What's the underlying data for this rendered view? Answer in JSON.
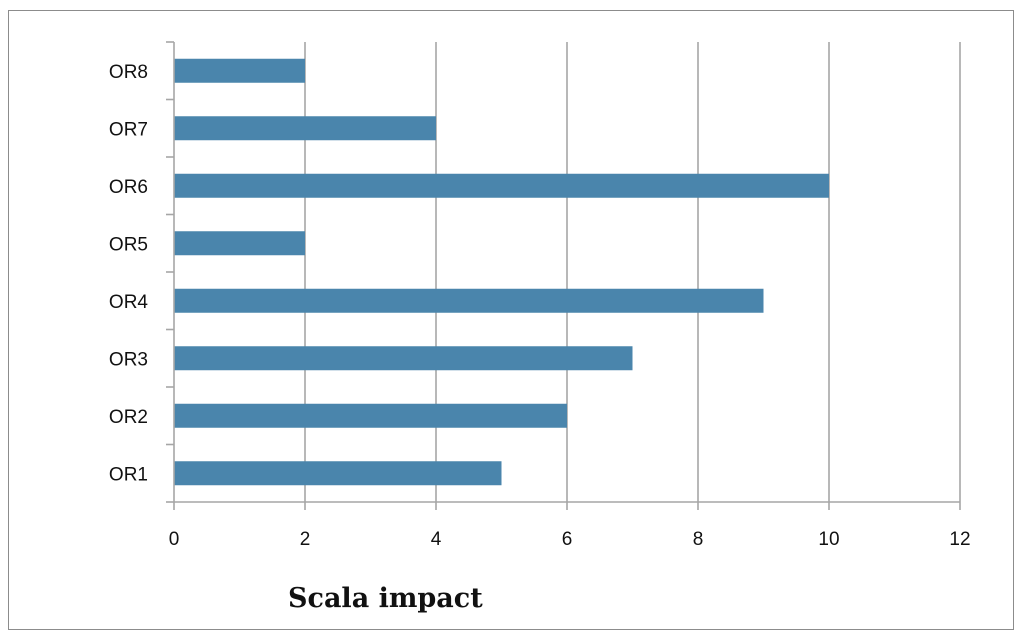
{
  "chart_data": {
    "type": "bar",
    "orientation": "horizontal",
    "categories": [
      "OR1",
      "OR2",
      "OR3",
      "OR4",
      "OR5",
      "OR6",
      "OR7",
      "OR8"
    ],
    "values": [
      5,
      6,
      7,
      9,
      2,
      10,
      4,
      2
    ],
    "title": "",
    "xlabel": "Scala impact",
    "ylabel": "",
    "xlim": [
      0,
      12
    ],
    "xticks": [
      0,
      2,
      4,
      6,
      8,
      10,
      12
    ],
    "grid": "vertical",
    "legend": "none",
    "bar_color": "#4a85ac",
    "grid_color": "#a6a6a6"
  }
}
